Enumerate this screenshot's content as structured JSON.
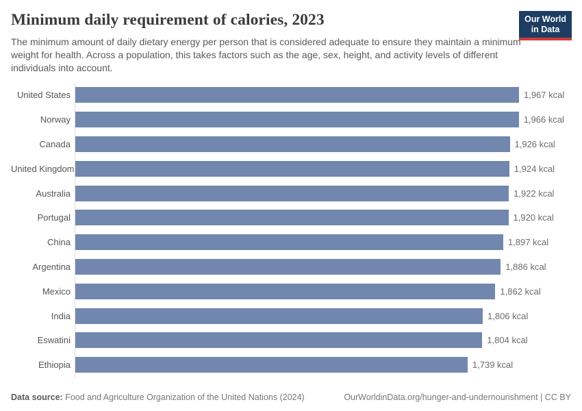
{
  "header": {
    "title": "Minimum daily requirement of calories, 2023",
    "subtitle": "The minimum amount of daily dietary energy per person that is considered adequate to ensure they maintain a minimum weight for health. Across a population, this takes factors such as the age, sex, height, and activity levels of different individuals into account.",
    "logo": {
      "line1": "Our World",
      "line2": "in Data"
    }
  },
  "chart_data": {
    "type": "bar",
    "orientation": "horizontal",
    "title": "Minimum daily requirement of calories, 2023",
    "unit": "kcal",
    "categories": [
      "United States",
      "Norway",
      "Canada",
      "United Kingdom",
      "Australia",
      "Portugal",
      "China",
      "Argentina",
      "Mexico",
      "India",
      "Eswatini",
      "Ethiopia"
    ],
    "values": [
      1967,
      1966,
      1926,
      1924,
      1922,
      1920,
      1897,
      1886,
      1862,
      1806,
      1804,
      1739
    ],
    "value_labels": [
      "1,967 kcal",
      "1,966 kcal",
      "1,926 kcal",
      "1,924 kcal",
      "1,922 kcal",
      "1,920 kcal",
      "1,897 kcal",
      "1,886 kcal",
      "1,862 kcal",
      "1,806 kcal",
      "1,804 kcal",
      "1,739 kcal"
    ],
    "xlim": [
      0,
      1967
    ],
    "grid": false,
    "legend": false,
    "bar_color": "#7287ae",
    "axis_line_color": "#dddddd"
  },
  "footer": {
    "datasource_label": "Data source:",
    "datasource_value": " Food and Agriculture Organization of the United Nations (2024)",
    "url": "OurWorldinData.org/hunger-and-undernourishment",
    "separator": " | ",
    "license": "CC BY"
  }
}
